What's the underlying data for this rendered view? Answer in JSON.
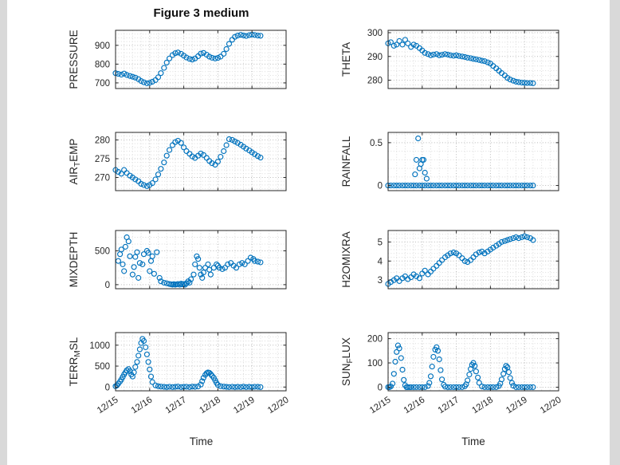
{
  "title": "Figure 3 medium",
  "accent_color": "#0072BD",
  "xaxis": {
    "lim": [
      0,
      5
    ],
    "ticks": [
      0,
      1,
      2,
      3,
      4,
      5
    ],
    "tick_labels": [
      "12/15",
      "12/16",
      "12/17",
      "12/18",
      "12/19",
      "12/20"
    ],
    "minor_step": 0.25,
    "label": "Time"
  },
  "chart_data": [
    {
      "type": "scatter",
      "name": "PRESSURE",
      "ylabel": {
        "pre": "PRESSURE",
        "sub": "",
        "post": ""
      },
      "ylim": [
        670,
        980
      ],
      "yticks": [
        700,
        800,
        900
      ],
      "x": [
        0,
        0.08,
        0.17,
        0.25,
        0.33,
        0.42,
        0.5,
        0.58,
        0.67,
        0.75,
        0.83,
        0.92,
        1,
        1.08,
        1.17,
        1.25,
        1.33,
        1.42,
        1.5,
        1.58,
        1.67,
        1.75,
        1.83,
        1.92,
        2,
        2.08,
        2.17,
        2.25,
        2.33,
        2.42,
        2.5,
        2.58,
        2.67,
        2.75,
        2.83,
        2.92,
        3,
        3.08,
        3.17,
        3.25,
        3.33,
        3.42,
        3.5,
        3.58,
        3.67,
        3.75,
        3.83,
        3.92,
        4,
        4.08,
        4.17,
        4.25
      ],
      "y": [
        752,
        748,
        744,
        750,
        742,
        737,
        733,
        728,
        720,
        710,
        703,
        698,
        700,
        706,
        715,
        730,
        752,
        780,
        808,
        830,
        848,
        858,
        862,
        855,
        845,
        835,
        828,
        824,
        830,
        842,
        856,
        860,
        850,
        840,
        834,
        830,
        833,
        840,
        855,
        880,
        908,
        930,
        945,
        952,
        956,
        953,
        950,
        954,
        957,
        955,
        952,
        951
      ]
    },
    {
      "type": "scatter",
      "name": "THETA",
      "ylabel": {
        "pre": "THETA",
        "sub": "",
        "post": ""
      },
      "ylim": [
        276.5,
        301
      ],
      "yticks": [
        280,
        290,
        300
      ],
      "x": [
        0,
        0.08,
        0.17,
        0.25,
        0.33,
        0.42,
        0.5,
        0.58,
        0.67,
        0.75,
        0.83,
        0.92,
        1,
        1.08,
        1.17,
        1.25,
        1.33,
        1.42,
        1.5,
        1.58,
        1.67,
        1.75,
        1.83,
        1.92,
        2,
        2.08,
        2.17,
        2.25,
        2.33,
        2.42,
        2.5,
        2.58,
        2.67,
        2.75,
        2.83,
        2.92,
        3,
        3.08,
        3.17,
        3.25,
        3.33,
        3.42,
        3.5,
        3.58,
        3.67,
        3.75,
        3.83,
        3.92,
        4,
        4.08,
        4.17,
        4.25
      ],
      "y": [
        295.5,
        296,
        294.5,
        295,
        296.5,
        295,
        297,
        295.5,
        294,
        295,
        294.5,
        293.5,
        292.5,
        291.5,
        291,
        290.5,
        290.8,
        291,
        290.5,
        290.7,
        291,
        290.8,
        290.5,
        290.3,
        290.5,
        290.2,
        290,
        289.8,
        289.5,
        289.3,
        289,
        288.8,
        288.5,
        288.2,
        288,
        287.5,
        287,
        286,
        285,
        284,
        283,
        282,
        281,
        280.3,
        279.8,
        279.4,
        279.2,
        279,
        278.9,
        278.8,
        278.8,
        278.7
      ]
    },
    {
      "type": "scatter",
      "name": "AIR_TEMP",
      "ylabel": {
        "pre": "AIR",
        "sub": "T",
        "post": "EMP"
      },
      "ylim": [
        266.5,
        282
      ],
      "yticks": [
        270,
        275,
        280
      ],
      "x": [
        0,
        0.08,
        0.17,
        0.25,
        0.33,
        0.42,
        0.5,
        0.58,
        0.67,
        0.75,
        0.83,
        0.92,
        1,
        1.08,
        1.17,
        1.25,
        1.33,
        1.42,
        1.5,
        1.58,
        1.67,
        1.75,
        1.83,
        1.92,
        2,
        2.08,
        2.17,
        2.25,
        2.33,
        2.42,
        2.5,
        2.58,
        2.67,
        2.75,
        2.83,
        2.92,
        3,
        3.08,
        3.17,
        3.25,
        3.33,
        3.42,
        3.5,
        3.58,
        3.67,
        3.75,
        3.83,
        3.92,
        4,
        4.08,
        4.17,
        4.25
      ],
      "y": [
        272,
        271.5,
        271,
        272,
        271.2,
        270.5,
        270,
        269.5,
        269,
        268.3,
        268,
        267.7,
        268,
        268.5,
        269.5,
        270.8,
        272.3,
        274,
        275.8,
        277.3,
        278.6,
        279.4,
        279.8,
        279.2,
        278,
        277,
        276.3,
        275.6,
        275.2,
        275.8,
        276.4,
        276,
        275.2,
        274.4,
        273.8,
        273.4,
        274.2,
        275.5,
        277,
        278.6,
        280.2,
        280,
        279.6,
        279.2,
        278.7,
        278.2,
        277.7,
        277.2,
        276.7,
        276.2,
        275.7,
        275.3
      ]
    },
    {
      "type": "scatter",
      "name": "RAINFALL",
      "ylabel": {
        "pre": "RAINFALL",
        "sub": "",
        "post": ""
      },
      "ylim": [
        -0.06,
        0.62
      ],
      "yticks": [
        0,
        0.5
      ],
      "x": [
        0,
        0.08,
        0.17,
        0.25,
        0.33,
        0.42,
        0.5,
        0.58,
        0.67,
        0.75,
        0.83,
        0.92,
        1,
        1.08,
        1.17,
        1.25,
        1.33,
        1.42,
        1.5,
        1.58,
        1.67,
        1.75,
        1.83,
        1.92,
        2,
        2.08,
        2.17,
        2.25,
        2.33,
        2.42,
        2.5,
        2.58,
        2.67,
        2.75,
        2.83,
        2.92,
        3,
        3.08,
        3.17,
        3.25,
        3.33,
        3.42,
        3.5,
        3.58,
        3.67,
        3.75,
        3.83,
        3.92,
        4,
        4.08,
        4.17,
        4.25,
        0.79,
        0.83,
        0.88,
        0.92,
        0.96,
        1,
        1.04,
        1.08,
        1.13
      ],
      "y": [
        0,
        0,
        0,
        0,
        0,
        0,
        0,
        0,
        0,
        0,
        0,
        0,
        0,
        0,
        0,
        0,
        0,
        0,
        0,
        0,
        0,
        0,
        0,
        0,
        0,
        0,
        0,
        0,
        0,
        0,
        0,
        0,
        0,
        0,
        0,
        0,
        0,
        0,
        0,
        0,
        0,
        0,
        0,
        0,
        0,
        0,
        0,
        0,
        0,
        0,
        0,
        0,
        0.13,
        0.3,
        0.55,
        0.2,
        0.25,
        0.3,
        0.3,
        0.15,
        0.08
      ]
    },
    {
      "type": "scatter",
      "name": "MIXDEPTH",
      "ylabel": {
        "pre": "MIXDEPTH",
        "sub": "",
        "post": ""
      },
      "ylim": [
        -60,
        800
      ],
      "yticks": [
        0,
        500
      ],
      "x": [
        0.08,
        0.13,
        0.17,
        0.21,
        0.25,
        0.29,
        0.33,
        0.38,
        0.42,
        0.5,
        0.54,
        0.58,
        0.63,
        0.67,
        0.71,
        0.79,
        0.83,
        0.92,
        0.96,
        1,
        1.04,
        1.08,
        1.13,
        1.21,
        1.29,
        1.33,
        1.42,
        1.5,
        1.58,
        1.63,
        1.67,
        1.71,
        1.75,
        1.79,
        1.83,
        1.88,
        1.92,
        1.96,
        2,
        2.04,
        2.08,
        2.13,
        2.17,
        2.21,
        2.29,
        2.33,
        2.38,
        2.42,
        2.46,
        2.5,
        2.54,
        2.58,
        2.63,
        2.71,
        2.75,
        2.79,
        2.88,
        2.96,
        3,
        3.04,
        3.13,
        3.21,
        3.29,
        3.38,
        3.46,
        3.54,
        3.63,
        3.71,
        3.79,
        3.88,
        3.96,
        4.04,
        4.08,
        4.17,
        4.25
      ],
      "y": [
        350,
        450,
        520,
        300,
        200,
        560,
        700,
        640,
        420,
        150,
        260,
        410,
        480,
        100,
        320,
        300,
        450,
        500,
        470,
        200,
        350,
        420,
        160,
        480,
        100,
        50,
        30,
        20,
        10,
        5,
        0,
        8,
        0,
        5,
        10,
        0,
        15,
        5,
        10,
        0,
        20,
        50,
        30,
        80,
        150,
        300,
        420,
        380,
        250,
        150,
        100,
        180,
        250,
        300,
        220,
        150,
        250,
        300,
        280,
        250,
        230,
        250,
        300,
        320,
        280,
        250,
        300,
        320,
        300,
        350,
        400,
        380,
        350,
        340,
        330
      ]
    },
    {
      "type": "scatter",
      "name": "H2OMIXRA",
      "ylabel": {
        "pre": "H2OMIXRA",
        "sub": "",
        "post": ""
      },
      "ylim": [
        2.55,
        5.6
      ],
      "yticks": [
        3,
        4,
        5
      ],
      "x": [
        0,
        0.08,
        0.17,
        0.25,
        0.33,
        0.42,
        0.5,
        0.58,
        0.67,
        0.75,
        0.83,
        0.92,
        1,
        1.08,
        1.17,
        1.25,
        1.33,
        1.42,
        1.5,
        1.58,
        1.67,
        1.75,
        1.83,
        1.92,
        2,
        2.08,
        2.17,
        2.25,
        2.33,
        2.42,
        2.5,
        2.58,
        2.67,
        2.75,
        2.83,
        2.92,
        3,
        3.08,
        3.17,
        3.25,
        3.33,
        3.42,
        3.5,
        3.58,
        3.67,
        3.75,
        3.83,
        3.92,
        4,
        4.08,
        4.17,
        4.25
      ],
      "y": [
        2.8,
        2.9,
        3,
        3.1,
        2.95,
        3.1,
        3.2,
        3.05,
        3.15,
        3.3,
        3.2,
        3.1,
        3.35,
        3.5,
        3.3,
        3.45,
        3.6,
        3.75,
        3.9,
        4.05,
        4.2,
        4.3,
        4.4,
        4.45,
        4.4,
        4.3,
        4.15,
        4,
        3.95,
        4.05,
        4.2,
        4.35,
        4.45,
        4.5,
        4.4,
        4.5,
        4.6,
        4.7,
        4.8,
        4.9,
        5,
        5.05,
        5.1,
        5.15,
        5.2,
        5.25,
        5.2,
        5.25,
        5.3,
        5.25,
        5.2,
        5.1
      ]
    },
    {
      "type": "scatter",
      "name": "TERR_MSL",
      "ylabel": {
        "pre": "TERR",
        "sub": "M",
        "post": "SL"
      },
      "ylim": [
        -90,
        1300
      ],
      "yticks": [
        0,
        500,
        1000
      ],
      "x": [
        0,
        0.04,
        0.08,
        0.13,
        0.17,
        0.21,
        0.25,
        0.29,
        0.33,
        0.38,
        0.42,
        0.46,
        0.5,
        0.54,
        0.58,
        0.63,
        0.67,
        0.71,
        0.75,
        0.79,
        0.83,
        0.88,
        0.92,
        0.96,
        1,
        1.04,
        1.08,
        1.17,
        1.25,
        1.33,
        1.42,
        1.5,
        1.58,
        1.67,
        1.75,
        1.83,
        1.92,
        2,
        2.08,
        2.17,
        2.25,
        2.33,
        2.42,
        2.5,
        2.54,
        2.58,
        2.63,
        2.67,
        2.71,
        2.75,
        2.79,
        2.83,
        2.88,
        2.92,
        2.96,
        3,
        3.08,
        3.17,
        3.25,
        3.33,
        3.42,
        3.5,
        3.58,
        3.67,
        3.75,
        3.83,
        3.92,
        4,
        4.08,
        4.17,
        4.25
      ],
      "y": [
        20,
        40,
        80,
        130,
        180,
        240,
        300,
        350,
        400,
        430,
        380,
        300,
        250,
        350,
        480,
        600,
        750,
        900,
        1050,
        1150,
        1100,
        950,
        780,
        600,
        420,
        250,
        120,
        40,
        20,
        10,
        5,
        0,
        8,
        0,
        5,
        10,
        0,
        5,
        8,
        0,
        10,
        5,
        15,
        60,
        140,
        220,
        290,
        330,
        350,
        340,
        310,
        270,
        220,
        160,
        100,
        50,
        20,
        10,
        5,
        0,
        8,
        0,
        5,
        0,
        10,
        0,
        5,
        0,
        8,
        5,
        0
      ]
    },
    {
      "type": "scatter",
      "name": "SUN_FLUX",
      "ylabel": {
        "pre": "SUN",
        "sub": "F",
        "post": "LUX"
      },
      "ylim": [
        -15,
        225
      ],
      "yticks": [
        0,
        100,
        200
      ],
      "x": [
        0,
        0.04,
        0.08,
        0.13,
        0.17,
        0.21,
        0.25,
        0.29,
        0.33,
        0.38,
        0.42,
        0.46,
        0.5,
        0.54,
        0.58,
        0.63,
        0.67,
        0.75,
        0.83,
        0.92,
        1,
        1.08,
        1.17,
        1.21,
        1.25,
        1.29,
        1.33,
        1.38,
        1.42,
        1.46,
        1.5,
        1.54,
        1.58,
        1.63,
        1.67,
        1.75,
        1.83,
        1.92,
        2,
        2.08,
        2.17,
        2.25,
        2.29,
        2.33,
        2.38,
        2.42,
        2.46,
        2.5,
        2.54,
        2.58,
        2.63,
        2.67,
        2.75,
        2.83,
        2.92,
        3,
        3.08,
        3.17,
        3.25,
        3.29,
        3.33,
        3.38,
        3.42,
        3.46,
        3.5,
        3.54,
        3.58,
        3.63,
        3.67,
        3.75,
        3.83,
        3.92,
        4,
        4.08,
        4.17,
        4.25
      ],
      "y": [
        0,
        0,
        3,
        15,
        55,
        105,
        145,
        172,
        160,
        120,
        72,
        30,
        8,
        0,
        0,
        0,
        0,
        0,
        0,
        0,
        0,
        0,
        5,
        18,
        45,
        85,
        125,
        155,
        165,
        150,
        115,
        70,
        32,
        10,
        2,
        0,
        0,
        0,
        0,
        0,
        0,
        4,
        12,
        28,
        52,
        75,
        92,
        100,
        88,
        65,
        40,
        18,
        3,
        0,
        0,
        0,
        0,
        0,
        5,
        15,
        32,
        55,
        75,
        88,
        82,
        62,
        38,
        18,
        6,
        0,
        0,
        0,
        0,
        0,
        0,
        0
      ]
    }
  ]
}
